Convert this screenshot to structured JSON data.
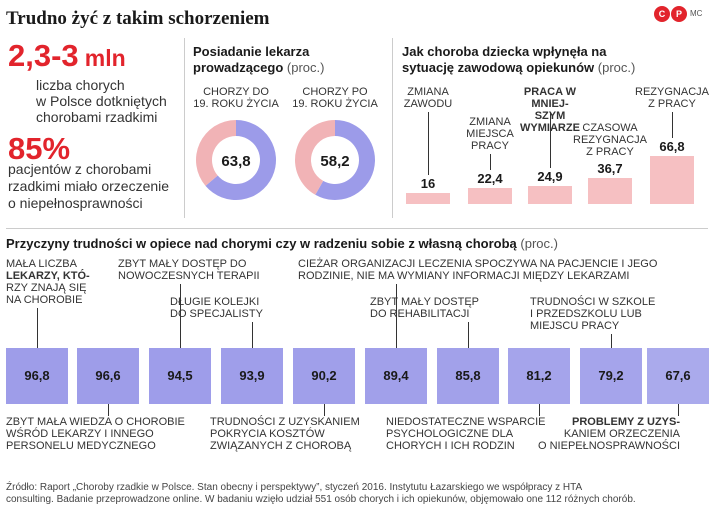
{
  "header": {
    "title": "Trudno żyć z takim schorzeniem",
    "logo_left": "C",
    "logo_right": "P",
    "credit": "MC"
  },
  "left": {
    "stat1_value": "2,3-3",
    "stat1_unit": "mln",
    "stat1_line1": "liczba chorych",
    "stat1_line2": "w Polsce dotkniętych",
    "stat1_line3": "chorobami rzadkimi",
    "stat2_value": "85%",
    "stat2_line1": "pacjentów z chorobami",
    "stat2_line2": "rzadkimi miało orzeczenie",
    "stat2_line3": "o niepełnosprawności"
  },
  "donut_section": {
    "title_line1": "Posiadanie lekarza",
    "title_line2": "prowadzącego",
    "unit": "(proc.)",
    "d1_line1": "CHORZY DO",
    "d1_line2": "19. ROKU ŻYCIA",
    "d1_value": "63,8",
    "d2_line1": "CHORZY PO",
    "d2_line2": "19. ROKU ŻYCIA",
    "d2_value": "58,2"
  },
  "work_section": {
    "title_line1": "Jak choroba dziecka wpłynęła na",
    "title_line2": "sytuację zawodową opiekunów",
    "unit": "(proc.)"
  },
  "bottom_section": {
    "title": "Przyczyny trudności w opiece nad chorymi czy w radzeniu sobie z własną chorobą",
    "unit": "(proc.)"
  },
  "source": {
    "line1": "Źródło: Raport „Choroby rzadkie w Polsce. Stan obecny i perspektywy”, styczeń 2016. Instytutu Łazarskiego we współpracy z HTA",
    "line2": "consulting. Badanie przeprowadzone online. W badaniu wzięło udział 551 osób chorych i ich opiekunów, objęmowało one 112 różnych chorób."
  },
  "colors": {
    "accent_red": "#e2242c",
    "purple": "#9c9be9",
    "pink": "#f1b3b6",
    "bar_pink": "#f6c0c2"
  },
  "chart_data": [
    {
      "type": "pie",
      "title": "Posiadanie lekarza prowadzącego (proc.)",
      "categories": [
        "CHORZY DO 19. ROKU ŻYCIA",
        "CHORZY PO 19. ROKU ŻYCIA"
      ],
      "values": [
        63.8,
        58.2
      ]
    },
    {
      "type": "bar",
      "title": "Jak choroba dziecka wpłynęła na sytuację zawodową opiekunów (proc.)",
      "categories": [
        "ZMIANA ZAWODU",
        "ZMIANA MIEJSCA PRACY",
        "PRACA W MNIEJSZYM WYMIARZE",
        "CZASOWA REZYGNACJA Z PRACY",
        "REZYGNACJA Z PRACY"
      ],
      "values": [
        16,
        22.4,
        24.9,
        36.7,
        66.8
      ],
      "value_labels": [
        "16",
        "22,4",
        "24,9",
        "36,7",
        "66,8"
      ]
    },
    {
      "type": "bar",
      "title": "Przyczyny trudności w opiece nad chorymi czy w radzeniu sobie z własną chorobą (proc.)",
      "categories": [
        "MAŁA LICZBA LEKARZY, KTÓRZY ZNAJĄ SIĘ NA CHOROBIE",
        "ZBYT MAŁA WIEDZA O CHOROBIE WŚRÓD LEKARZY I INNEGO PERSONELU MEDYCZNEGO",
        "ZBYT MAŁY DOSTĘP DO NOWOCZESNYCH TERAPII",
        "DŁUGIE KOLEJKI DO SPECJALISTY",
        "TRUDNOŚCI Z UZYSKANIEM POKRYCIA KOSZTÓW ZWIĄZANYCH Z CHOROBĄ",
        "CIEŻAR ORGANIZACJI LECZENIA SPOCZYWA NA PACJENCIE I JEGO RODZINIE, NIE MA WYMIANY INFORMACJI MIĘDZY LEKARZAMI",
        "ZBYT MAŁY DOSTĘP DO REHABILITACJI",
        "NIEDOSTATECZNE WSPARCIE PSYCHOLOGICZNE DLA CHORYCH I ICH RODZIN",
        "TRUDNOŚCI W SZKOLE I PRZEDSZKOLU LUB MIEJSCU PRACY",
        "PROBLEMY Z UZYSKANIEM ORZECZENIA O NIEPEŁNOSPRAWNOŚCI"
      ],
      "values": [
        96.8,
        96.6,
        94.5,
        93.9,
        90.2,
        89.4,
        85.8,
        81.2,
        79.2,
        67.6
      ],
      "value_labels": [
        "96,8",
        "96,6",
        "94,5",
        "93,9",
        "90,2",
        "89,4",
        "85,8",
        "81,2",
        "79,2",
        "67,6"
      ]
    }
  ]
}
